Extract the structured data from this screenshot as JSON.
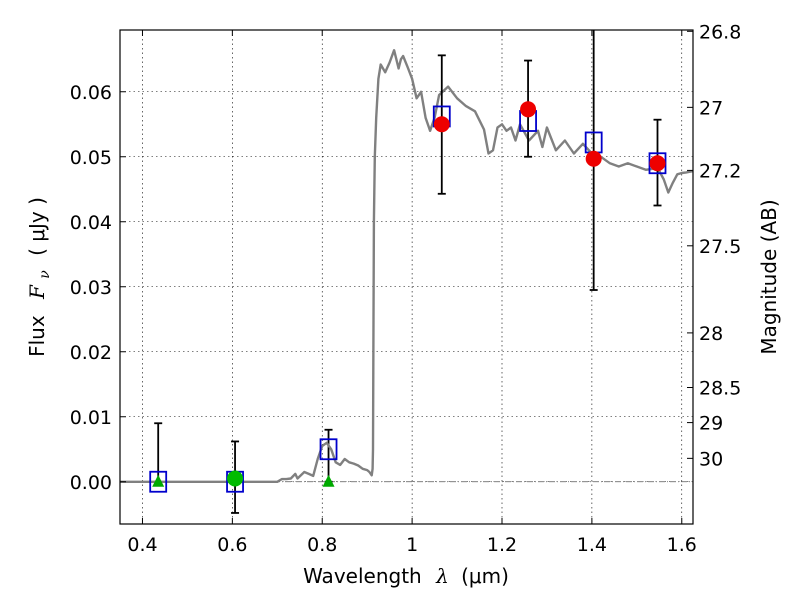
{
  "chart_data": {
    "type": "scatter",
    "xlabel": {
      "prefix": "Wavelength",
      "symbol": "λ",
      "unit": "(μm)"
    },
    "ylabel": {
      "prefix": "Flux",
      "symbol": "F",
      "subscript": "ν",
      "unit": "( μJy )"
    },
    "y2label": "Magnitude (AB)",
    "xlim": [
      0.35,
      1.625
    ],
    "ylim": [
      -0.0065,
      0.0695
    ],
    "grid": true,
    "x_ticks": [
      {
        "value": 0.4,
        "label": "0.4"
      },
      {
        "value": 0.6,
        "label": "0.6"
      },
      {
        "value": 0.8,
        "label": "0.8"
      },
      {
        "value": 1.0,
        "label": "1"
      },
      {
        "value": 1.2,
        "label": "1.2"
      },
      {
        "value": 1.4,
        "label": "1.4"
      },
      {
        "value": 1.6,
        "label": "1.6"
      }
    ],
    "y_ticks": [
      {
        "value": 0.0,
        "label": "0.00"
      },
      {
        "value": 0.01,
        "label": "0.01"
      },
      {
        "value": 0.02,
        "label": "0.02"
      },
      {
        "value": 0.03,
        "label": "0.03"
      },
      {
        "value": 0.04,
        "label": "0.04"
      },
      {
        "value": 0.05,
        "label": "0.05"
      },
      {
        "value": 0.06,
        "label": "0.06"
      }
    ],
    "y2_ticks": [
      {
        "label": "26.8",
        "flux": 0.0693
      },
      {
        "label": "27",
        "flux": 0.0576
      },
      {
        "label": "27.2",
        "flux": 0.0479
      },
      {
        "label": "27.5",
        "flux": 0.0363
      },
      {
        "label": "28",
        "flux": 0.0229
      },
      {
        "label": "28.5",
        "flux": 0.0145
      },
      {
        "label": "29",
        "flux": 0.0091
      },
      {
        "label": "30",
        "flux": 0.0036
      }
    ],
    "series": [
      {
        "role": "model-spectrum",
        "style": "line",
        "color": "#808080",
        "x": [
          0.35,
          0.7,
          0.71,
          0.72,
          0.73,
          0.74,
          0.745,
          0.76,
          0.77,
          0.78,
          0.79,
          0.8,
          0.81,
          0.82,
          0.83,
          0.84,
          0.85,
          0.86,
          0.87,
          0.88,
          0.89,
          0.9,
          0.905,
          0.91,
          0.912,
          0.913,
          0.914,
          0.915,
          0.917,
          0.92,
          0.925,
          0.93,
          0.94,
          0.95,
          0.96,
          0.97,
          0.975,
          0.98,
          0.99,
          1.0,
          1.01,
          1.02,
          1.03,
          1.04,
          1.05,
          1.06,
          1.08,
          1.1,
          1.12,
          1.14,
          1.16,
          1.17,
          1.18,
          1.19,
          1.2,
          1.21,
          1.22,
          1.23,
          1.24,
          1.26,
          1.28,
          1.29,
          1.3,
          1.32,
          1.34,
          1.36,
          1.38,
          1.4,
          1.42,
          1.44,
          1.46,
          1.48,
          1.5,
          1.52,
          1.54,
          1.55,
          1.56,
          1.57,
          1.58,
          1.59,
          1.6,
          1.61,
          1.625
        ],
        "y": [
          0.0,
          0.0,
          0.0004,
          0.0004,
          0.0005,
          0.0012,
          0.0005,
          0.0015,
          0.0012,
          0.0009,
          0.0035,
          0.0055,
          0.006,
          0.005,
          0.003,
          0.0026,
          0.0035,
          0.003,
          0.0028,
          0.0025,
          0.002,
          0.0018,
          0.0015,
          0.001,
          0.002,
          0.005,
          0.025,
          0.04,
          0.05,
          0.056,
          0.062,
          0.0642,
          0.063,
          0.0645,
          0.0664,
          0.0636,
          0.065,
          0.0655,
          0.0638,
          0.062,
          0.059,
          0.06,
          0.056,
          0.054,
          0.056,
          0.0595,
          0.0608,
          0.059,
          0.0578,
          0.057,
          0.0542,
          0.0505,
          0.051,
          0.0545,
          0.055,
          0.054,
          0.0545,
          0.0525,
          0.055,
          0.0525,
          0.054,
          0.0515,
          0.0545,
          0.051,
          0.0525,
          0.0505,
          0.052,
          0.0505,
          0.05,
          0.049,
          0.0485,
          0.049,
          0.0485,
          0.048,
          0.0482,
          0.0478,
          0.0465,
          0.0445,
          0.046,
          0.0473,
          0.0475,
          0.0476,
          0.0478
        ]
      },
      {
        "role": "model-photometry",
        "style": "open-square",
        "color": "#0000cc",
        "x": [
          0.435,
          0.606,
          0.814,
          1.066,
          1.258,
          1.404,
          1.546
        ],
        "y": [
          0.0,
          0.0,
          0.005,
          0.0562,
          0.0555,
          0.0522,
          0.049
        ]
      },
      {
        "role": "upper-limits",
        "style": "triangle",
        "color": "#00aa00",
        "x": [
          0.435,
          0.814
        ],
        "y": [
          0.0,
          0.0
        ]
      },
      {
        "role": "detections",
        "style": "circle",
        "color": "#00bb00",
        "x": [
          0.606
        ],
        "y": [
          0.0005
        ],
        "err_low": [
          -0.0048
        ],
        "err_high": [
          0.0062
        ]
      },
      {
        "role": "detections",
        "style": "circle",
        "color": "#ee0000",
        "x": [
          1.066,
          1.258,
          1.404,
          1.546
        ],
        "y": [
          0.055,
          0.0573,
          0.0497,
          0.049
        ],
        "err_low": [
          0.0443,
          0.05,
          0.0295,
          0.0425
        ],
        "err_high": [
          0.0656,
          0.0648,
          0.0695,
          0.0557
        ]
      }
    ],
    "error_bars_upper_limits": [
      {
        "x": 0.435,
        "low": 0.0,
        "high": 0.009
      },
      {
        "x": 0.814,
        "low": 0.0,
        "high": 0.008
      }
    ]
  }
}
